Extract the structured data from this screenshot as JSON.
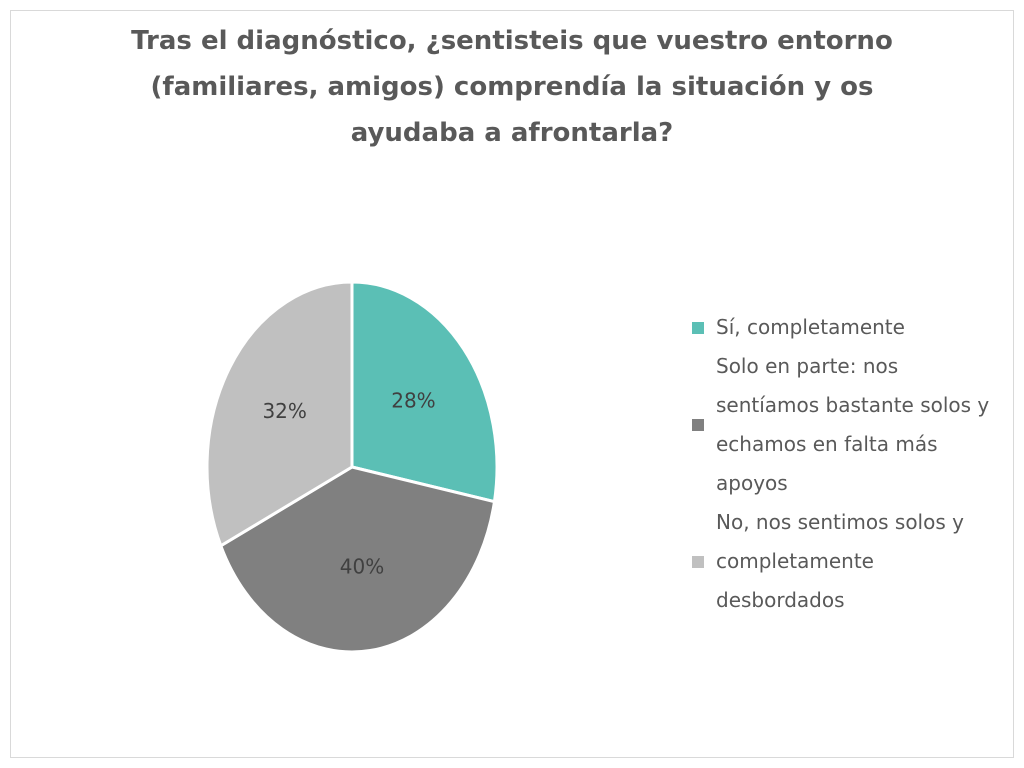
{
  "chart_data": {
    "type": "pie",
    "title": "Tras el diagnóstico, ¿sentisteis que vuestro entorno (familiares, amigos) comprendía la situación y os ayudaba a afrontarla?",
    "categories": [
      "Sí, completamente",
      "Solo en parte: nos sentíamos bastante solos y echamos en falta más apoyos",
      "No, nos sentimos solos y completamente desbordados"
    ],
    "values": [
      28,
      40,
      32
    ],
    "value_labels": [
      "28%",
      "40%",
      "32%"
    ],
    "colors": [
      "#5bbfb5",
      "#808080",
      "#c0c0c0"
    ],
    "legend": "right"
  }
}
